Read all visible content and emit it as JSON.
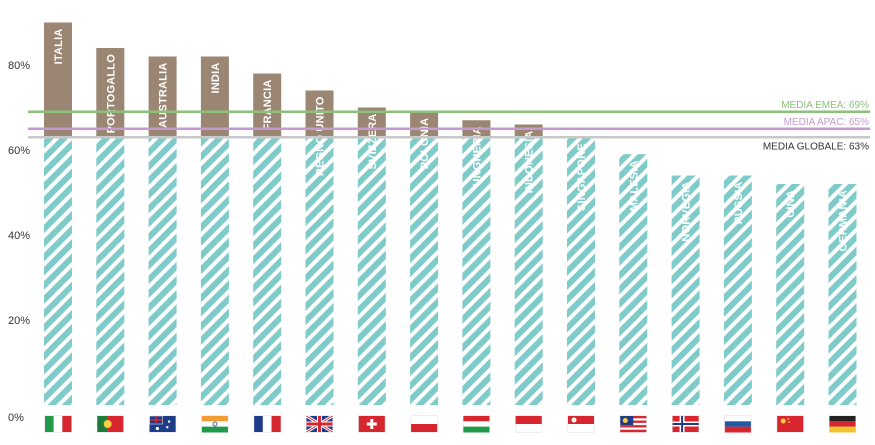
{
  "chart_data": {
    "type": "bar",
    "categories": [
      "ITALIA",
      "PORTOGALLO",
      "AUSTRALIA",
      "INDIA",
      "FRANCIA",
      "REGNO UNITO",
      "SVIZZERA",
      "POLONIA",
      "UNGHERIA",
      "INDONESIA",
      "SINGAPORE",
      "MALESIA",
      "NORVEGIA",
      "RUSSIA",
      "CINA",
      "GERMANIA"
    ],
    "values": [
      90,
      84,
      82,
      82,
      78,
      74,
      70,
      69,
      67,
      66,
      63,
      59,
      54,
      54,
      52,
      52
    ],
    "baseline_value": 63,
    "ylim": [
      0,
      92
    ],
    "yticks": [
      {
        "value": 0,
        "label": "0%"
      },
      {
        "value": 20,
        "label": "20%"
      },
      {
        "value": 40,
        "label": "40%"
      },
      {
        "value": 60,
        "label": "60%"
      },
      {
        "value": 80,
        "label": "80%"
      }
    ],
    "reference_lines": [
      {
        "label": "MEDIA EMEA: 69%",
        "value": 69,
        "color": "#8dc07a"
      },
      {
        "label": "MEDIA APAC: 65%",
        "value": 65,
        "color": "#c39bcf"
      },
      {
        "label": "MEDIA GLOBALE: 63%",
        "value": 63,
        "color": "#c8c8c8"
      }
    ],
    "flags": [
      "italy-flag",
      "portugal-flag",
      "australia-flag",
      "india-flag",
      "france-flag",
      "uk-flag",
      "switzerland-flag",
      "poland-flag",
      "hungary-flag",
      "indonesia-flag",
      "singapore-flag",
      "malaysia-flag",
      "norway-flag",
      "russia-flag",
      "china-flag",
      "germany-flag"
    ],
    "colors": {
      "hatch": "#7fcbc9",
      "hatch_light": "#ffffff",
      "above": "#9a8672",
      "globale_label": "#333333"
    },
    "grid": false,
    "legend": "none"
  }
}
